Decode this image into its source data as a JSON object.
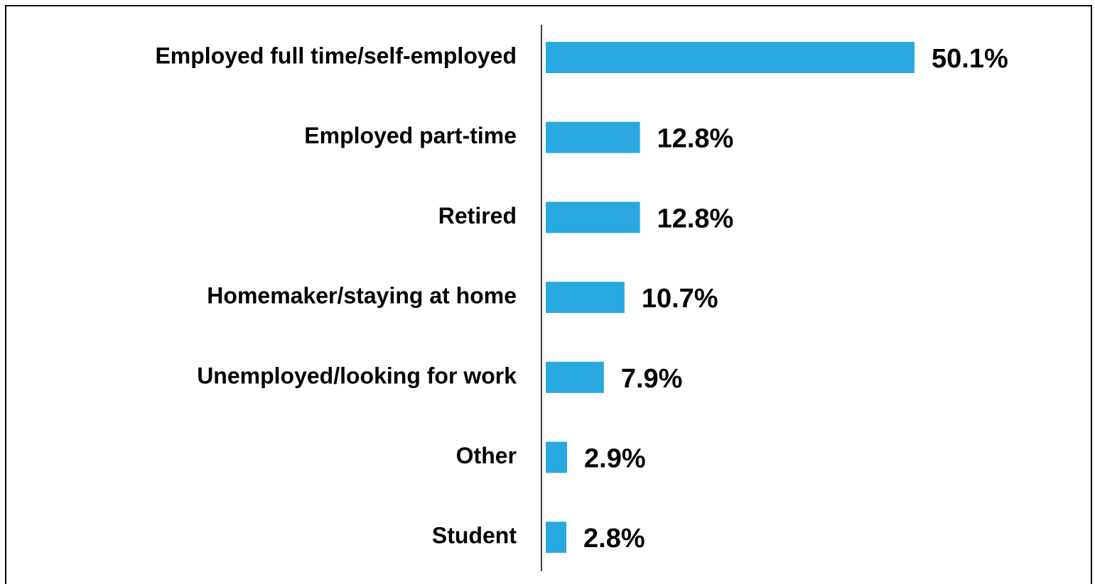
{
  "chart_data": {
    "type": "bar",
    "orientation": "horizontal",
    "categories": [
      "Employed full time/self-employed",
      "Employed part-time",
      "Retired",
      "Homemaker/staying at home",
      "Unemployed/looking for work",
      "Other",
      "Student"
    ],
    "values": [
      50.1,
      12.8,
      12.8,
      10.7,
      7.9,
      2.9,
      2.8
    ],
    "value_labels": [
      "50.1%",
      "12.8%",
      "12.8%",
      "10.7%",
      "7.9%",
      "2.9%",
      "2.8%"
    ],
    "color": "#29a8e0"
  }
}
